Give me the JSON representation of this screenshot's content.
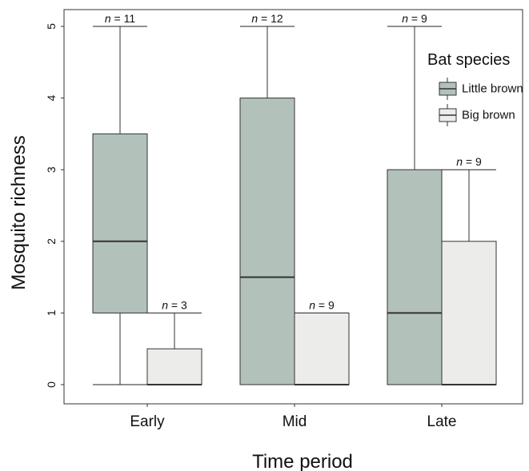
{
  "chart_data": {
    "type": "box",
    "title": "",
    "xlabel": "Time period",
    "ylabel": "Mosquito richness",
    "ylim": [
      0,
      5
    ],
    "y_ticks": [
      "0",
      "1",
      "2",
      "3",
      "4",
      "5"
    ],
    "categories": [
      "Early",
      "Mid",
      "Late"
    ],
    "legend": {
      "title": "Bat species",
      "position": "top-right"
    },
    "series": [
      {
        "name": "Little brown",
        "color": "#b3c1bb",
        "boxes": [
          {
            "category": "Early",
            "min": 0,
            "q1": 1,
            "median": 2,
            "q3": 3.5,
            "max": 5,
            "n_label": "n = 11"
          },
          {
            "category": "Mid",
            "min": 0,
            "q1": 0,
            "median": 1.5,
            "q3": 4,
            "max": 5,
            "n_label": "n = 12"
          },
          {
            "category": "Late",
            "min": 0,
            "q1": 0,
            "median": 1,
            "q3": 3,
            "max": 5,
            "n_label": "n = 9"
          }
        ]
      },
      {
        "name": "Big brown",
        "color": "#ececea",
        "boxes": [
          {
            "category": "Early",
            "min": 0,
            "q1": 0,
            "median": 0,
            "q3": 0.5,
            "max": 1,
            "n_label": "n = 3"
          },
          {
            "category": "Mid",
            "min": 0,
            "q1": 0,
            "median": 0,
            "q3": 1,
            "max": 1,
            "n_label": "n = 9"
          },
          {
            "category": "Late",
            "min": 0,
            "q1": 0,
            "median": 0,
            "q3": 2,
            "max": 3,
            "n_label": "n = 9"
          }
        ]
      }
    ],
    "grid": false
  }
}
